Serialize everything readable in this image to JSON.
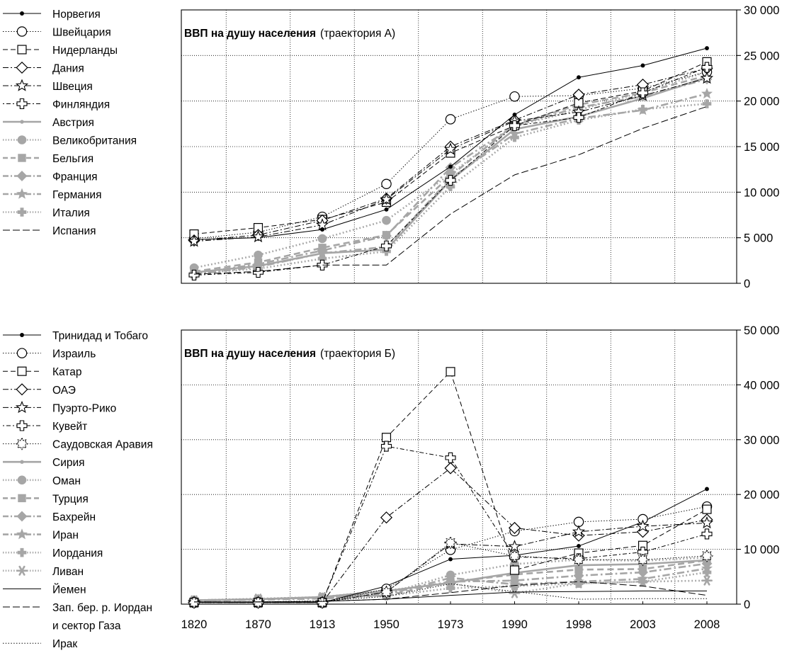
{
  "colors": {
    "black": "#000000",
    "gray": "#a6a6a6"
  },
  "chart_data": [
    {
      "type": "line",
      "title_bold": "ВВП на душу населения",
      "title_rest": "(траектория А)",
      "y_axis_side": "right",
      "ylim": [
        0,
        30000
      ],
      "yticks": [
        0,
        5000,
        10000,
        15000,
        20000,
        25000,
        30000
      ],
      "ytick_labels": [
        "0",
        "5 000",
        "10 000",
        "15 000",
        "20 000",
        "25 000",
        "30 000"
      ],
      "grid": "dotted",
      "legend_placement": "left",
      "categories": [
        "1820",
        "1870",
        "1913",
        "1950",
        "1973",
        "1990",
        "1998",
        "2003",
        "2008"
      ],
      "series": [
        {
          "name": "Норвегия",
          "color": "black",
          "dash": "solid",
          "marker": "dot",
          "values": [
            4800,
            5000,
            5900,
            8100,
            12800,
            18500,
            22600,
            23900,
            25800
          ]
        },
        {
          "name": "Швейцария",
          "color": "black",
          "dash": "dotted",
          "marker": "circle",
          "values": [
            4900,
            5600,
            7300,
            10900,
            18000,
            20500,
            20600,
            21400,
            23200
          ]
        },
        {
          "name": "Нидерланды",
          "color": "black",
          "dash": "dashed",
          "marker": "square",
          "values": [
            5400,
            6100,
            7000,
            8900,
            14300,
            17300,
            19800,
            21100,
            24300
          ]
        },
        {
          "name": "Дания",
          "color": "black",
          "dash": "dashdot",
          "marker": "diamond",
          "values": [
            4700,
            5300,
            6900,
            9300,
            15000,
            17900,
            20700,
            21800,
            23600
          ]
        },
        {
          "name": "Швеция",
          "color": "black",
          "dash": "dashdot",
          "marker": "star",
          "values": [
            4600,
            5100,
            6400,
            9200,
            14700,
            17800,
            18800,
            20600,
            22500
          ]
        },
        {
          "name": "Финляндия",
          "color": "black",
          "dash": "dotdash",
          "marker": "cross",
          "values": [
            900,
            1200,
            2000,
            4100,
            11300,
            17300,
            18200,
            20900,
            23700
          ]
        },
        {
          "name": "Австрия",
          "color": "gray",
          "dash": "solid",
          "marker": "dot",
          "values": [
            1200,
            1900,
            3300,
            3700,
            11300,
            16900,
            18300,
            20300,
            22600
          ]
        },
        {
          "name": "Великобритания",
          "color": "gray",
          "dash": "dotted",
          "marker": "circle",
          "values": [
            1700,
            3100,
            4900,
            6900,
            12000,
            17300,
            19000,
            21000,
            23200
          ]
        },
        {
          "name": "Бельгия",
          "color": "gray",
          "dash": "dashed",
          "marker": "square",
          "values": [
            1300,
            2300,
            3900,
            5300,
            11800,
            17400,
            19600,
            20900,
            22800
          ]
        },
        {
          "name": "Франция",
          "color": "gray",
          "dash": "dashdot",
          "marker": "diamond",
          "values": [
            1100,
            2100,
            3600,
            5200,
            12700,
            17300,
            19300,
            20500,
            22400
          ]
        },
        {
          "name": "Германия",
          "color": "gray",
          "dash": "dashdot",
          "marker": "star",
          "values": [
            1000,
            1800,
            3300,
            4000,
            11500,
            16400,
            18100,
            19000,
            20800
          ]
        },
        {
          "name": "Италия",
          "color": "gray",
          "dash": "dotted",
          "marker": "plus",
          "values": [
            1100,
            1600,
            2700,
            3500,
            10600,
            16000,
            17900,
            19100,
            19700
          ]
        },
        {
          "name": "Испания",
          "color": "black",
          "dash": "longdash",
          "marker": "none",
          "values": [
            1000,
            1300,
            2000,
            2000,
            7600,
            11900,
            14100,
            17000,
            19400
          ]
        }
      ]
    },
    {
      "type": "line",
      "title_bold": "ВВП на душу населения",
      "title_rest": "(траектория Б)",
      "y_axis_side": "right",
      "ylim": [
        0,
        50000
      ],
      "yticks": [
        0,
        10000,
        20000,
        30000,
        40000,
        50000
      ],
      "ytick_labels": [
        "0",
        "10 000",
        "20 000",
        "30 000",
        "40 000",
        "50 000"
      ],
      "grid": "dotted",
      "legend_placement": "left",
      "categories": [
        "1820",
        "1870",
        "1913",
        "1950",
        "1973",
        "1990",
        "1998",
        "2003",
        "2008"
      ],
      "x_tick_labels": [
        "1820",
        "1870",
        "1913",
        "1950",
        "1973",
        "1990",
        "1998",
        "2003",
        "2008"
      ],
      "series": [
        {
          "name": "Тринидад и Тобаго",
          "color": "black",
          "dash": "solid",
          "marker": "dot",
          "values": [
            300,
            300,
            300,
            3300,
            8200,
            8900,
            10600,
            15000,
            21000
          ]
        },
        {
          "name": "Израиль",
          "color": "black",
          "dash": "dotted",
          "marker": "circle",
          "values": [
            300,
            300,
            300,
            2800,
            9900,
            13300,
            15000,
            15500,
            17800
          ]
        },
        {
          "name": "Катар",
          "color": "black",
          "dash": "dashed",
          "marker": "square",
          "values": [
            300,
            300,
            300,
            30400,
            42400,
            6200,
            9300,
            10700,
            17300
          ]
        },
        {
          "name": "ОАЭ",
          "color": "black",
          "dash": "dashdot",
          "marker": "diamond",
          "values": [
            300,
            300,
            300,
            15800,
            24800,
            13900,
            12500,
            13200,
            15400
          ]
        },
        {
          "name": "Пуэрто-Рико",
          "color": "black",
          "dash": "dashdot",
          "marker": "star",
          "values": [
            300,
            300,
            300,
            2200,
            11000,
            10500,
            13200,
            14200,
            14800
          ]
        },
        {
          "name": "Кувейт",
          "color": "black",
          "dash": "dotdash",
          "marker": "cross",
          "values": [
            300,
            300,
            300,
            28800,
            26700,
            8600,
            8300,
            9500,
            12800
          ]
        },
        {
          "name": "Саудовская Аравия",
          "color": "black",
          "dash": "dotted",
          "marker": "gear",
          "values": [
            300,
            300,
            300,
            2200,
            11200,
            8800,
            8100,
            8100,
            8800
          ]
        },
        {
          "name": "Сирия",
          "color": "gray",
          "dash": "solid",
          "marker": "dot",
          "values": [
            700,
            900,
            1300,
            2400,
            3900,
            5700,
            7100,
            7300,
            8000
          ]
        },
        {
          "name": "Оман",
          "color": "gray",
          "dash": "dotted",
          "marker": "circle",
          "values": [
            700,
            900,
            1200,
            1900,
            5300,
            7300,
            8100,
            7900,
            8500
          ]
        },
        {
          "name": "Турция",
          "color": "gray",
          "dash": "dashed",
          "marker": "square",
          "values": [
            600,
            900,
            1200,
            1600,
            4000,
            5400,
            6300,
            6400,
            8000
          ]
        },
        {
          "name": "Бахрейн",
          "color": "gray",
          "dash": "dashdot",
          "marker": "diamond",
          "values": [
            700,
            900,
            1200,
            2100,
            4100,
            4300,
            5200,
            5800,
            7400
          ]
        },
        {
          "name": "Иран",
          "color": "gray",
          "dash": "dashdot",
          "marker": "star",
          "values": [
            600,
            800,
            1000,
            1700,
            4800,
            3600,
            4100,
            4600,
            6500
          ]
        },
        {
          "name": "Иордания",
          "color": "gray",
          "dash": "dotted",
          "marker": "plus",
          "values": [
            700,
            900,
            1200,
            1500,
            2900,
            3300,
            3800,
            4100,
            5800
          ]
        },
        {
          "name": "Ливан",
          "color": "gray",
          "dash": "dotted",
          "marker": "asterisk",
          "values": [
            700,
            1000,
            1300,
            2500,
            3800,
            2000,
            3800,
            4100,
            4300
          ]
        },
        {
          "name": "Йемен",
          "color": "black",
          "dash": "solid",
          "marker": "none",
          "values": [
            400,
            400,
            500,
            900,
            1600,
            2200,
            2300,
            2400,
            2400
          ]
        },
        {
          "name": "Зап. бер. р. Иордан и сектор Газа",
          "name_lines": [
            "Зап. бер. р. Иордан",
            "и сектор Газа"
          ],
          "color": "black",
          "dash": "longdash",
          "marker": "none",
          "values": [
            400,
            400,
            500,
            900,
            2100,
            3400,
            4100,
            3300,
            1600
          ]
        },
        {
          "name": "Ирак",
          "color": "black",
          "dash": "dotted",
          "marker": "none",
          "values": [
            400,
            400,
            600,
            1400,
            3700,
            2300,
            900,
            1000,
            1000
          ]
        }
      ]
    }
  ]
}
